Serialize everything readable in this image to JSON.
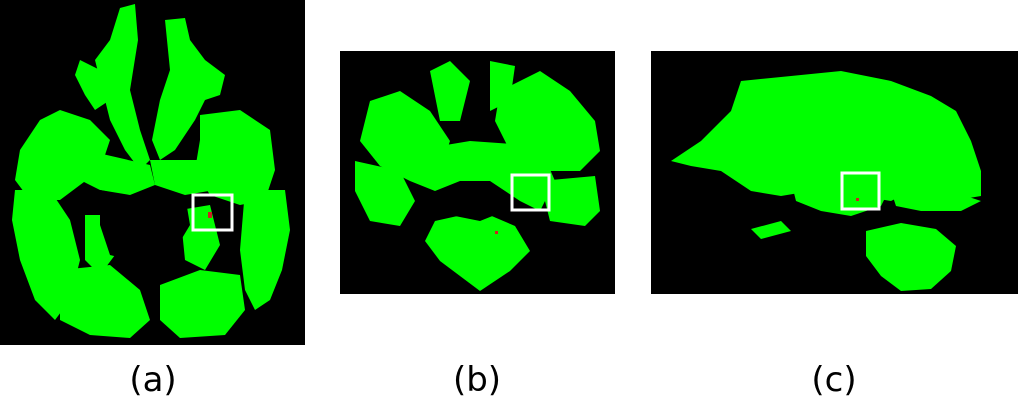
{
  "colors": {
    "background": "#000000",
    "tissue": "#00ff00",
    "lesion": "#cc2222",
    "roi_box": "#ffffff"
  },
  "panels": [
    {
      "id": "a",
      "view": "axial",
      "caption": "(a)"
    },
    {
      "id": "b",
      "view": "coronal",
      "caption": "(b)"
    },
    {
      "id": "c",
      "view": "sagittal",
      "caption": "(c)"
    }
  ]
}
